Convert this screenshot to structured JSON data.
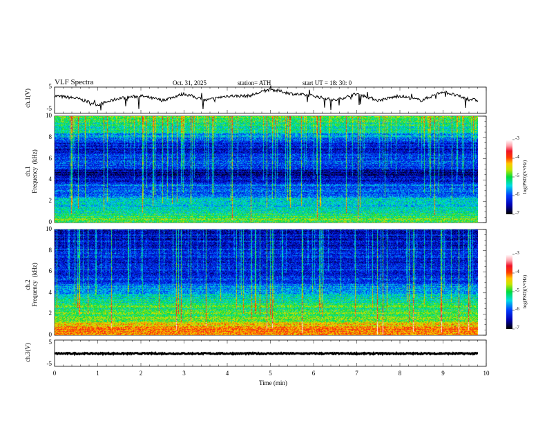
{
  "header": {
    "title": "VLF  Spectra",
    "date": "Oct. 31, 2025",
    "station": "station= ATH",
    "start_ut": "start  UT  =    18: 30: 0"
  },
  "chart_data": [
    {
      "type": "line",
      "name": "ch1 waveform",
      "ylabel": "ch.1(V)",
      "ylim": [
        -5,
        5
      ],
      "yticks": [
        "5",
        "-5"
      ],
      "xlim": [
        0,
        10
      ],
      "x": [
        0,
        0.5,
        1,
        1.5,
        2,
        2.5,
        3,
        3.5,
        4,
        4.5,
        5,
        5.5,
        6,
        6.5,
        7,
        7.5,
        8,
        8.5,
        9,
        9.5,
        9.8
      ],
      "values": [
        1,
        0,
        -3,
        0,
        1,
        -1,
        2,
        -1,
        1,
        1,
        4,
        2,
        1,
        -1,
        2,
        -1,
        1,
        -1,
        3,
        0,
        -1
      ]
    },
    {
      "type": "heatmap",
      "name": "ch1 spectrogram",
      "ylabel": "ch.1\nFrequency  (kHz)",
      "ylim": [
        0,
        10
      ],
      "yticks": [
        "0",
        "2",
        "4",
        "6",
        "8",
        "10"
      ],
      "xlim": [
        0,
        10
      ],
      "colorbar": {
        "label": "log(PSD)(V²/Hz)",
        "range": [
          -7,
          -3
        ],
        "ticks": [
          "-3",
          "-4",
          "-5",
          "-6",
          "-7"
        ]
      },
      "freq_khz": [
        0,
        0.5,
        1,
        1.5,
        2,
        2.5,
        3,
        3.5,
        4,
        4.5,
        5,
        5.5,
        6,
        6.5,
        7,
        7.5,
        8,
        8.5,
        9,
        9.5,
        10
      ],
      "mean_log_psd": [
        -4.8,
        -5.0,
        -5.3,
        -5.5,
        -5.4,
        -5.8,
        -6.0,
        -5.9,
        -6.3,
        -6.6,
        -6.4,
        -6.0,
        -6.1,
        -6.2,
        -6.3,
        -6.2,
        -5.8,
        -5.5,
        -5.3,
        -5.1,
        -5.0
      ]
    },
    {
      "type": "heatmap",
      "name": "ch2 spectrogram",
      "ylabel": "ch.2\nFrequency  (kHz)",
      "ylim": [
        0,
        10
      ],
      "yticks": [
        "0",
        "2",
        "4",
        "6",
        "8",
        "10"
      ],
      "xlim": [
        0,
        10
      ],
      "colorbar": {
        "label": "log(PSD)(V²/Hz)",
        "range": [
          -7,
          -3
        ],
        "ticks": [
          "-3",
          "-4",
          "-5",
          "-6",
          "-7"
        ]
      },
      "freq_khz": [
        0,
        0.5,
        1,
        1.5,
        2,
        2.5,
        3,
        3.5,
        4,
        4.5,
        5,
        5.5,
        6,
        6.5,
        7,
        7.5,
        8,
        8.5,
        9,
        9.5,
        10
      ],
      "mean_log_psd": [
        -4.2,
        -4.0,
        -4.5,
        -4.8,
        -4.9,
        -5.0,
        -5.1,
        -5.3,
        -5.6,
        -5.7,
        -6.0,
        -6.2,
        -6.2,
        -6.3,
        -6.4,
        -6.3,
        -6.2,
        -6.3,
        -6.4,
        -6.4,
        -6.3
      ]
    },
    {
      "type": "line",
      "name": "ch3 waveform",
      "ylabel": "ch.3(V)",
      "ylim": [
        -5,
        5
      ],
      "yticks": [
        "5",
        "-5"
      ],
      "xlim": [
        0,
        10
      ],
      "x": [
        0,
        9.8
      ],
      "values": [
        0,
        0
      ]
    }
  ],
  "xaxis": {
    "label": "Time  (min)",
    "ticks": [
      "0",
      "1",
      "2",
      "3",
      "4",
      "5",
      "6",
      "7",
      "8",
      "9",
      "10"
    ]
  }
}
